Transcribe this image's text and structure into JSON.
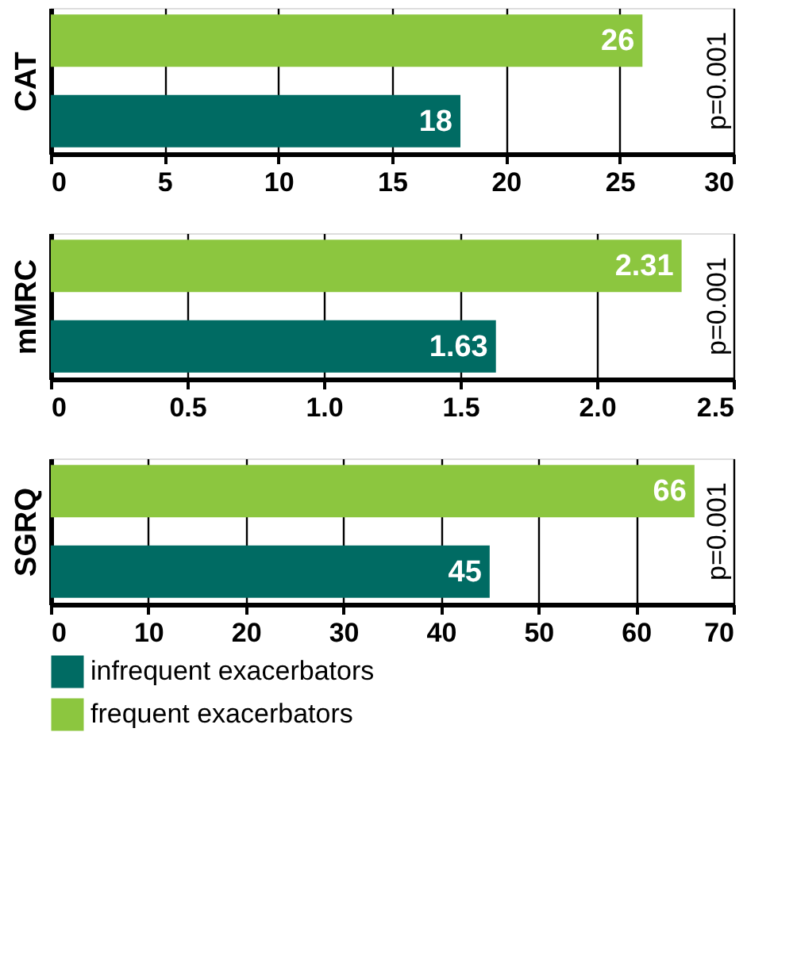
{
  "chart_data": [
    {
      "type": "bar",
      "orientation": "horizontal",
      "ylabel": "CAT",
      "categories": [
        null
      ],
      "series": [
        {
          "color": "#006b63",
          "values": [
            18
          ]
        },
        {
          "color": "#8cc63f",
          "values": [
            26
          ]
        }
      ],
      "xlim": [
        0,
        30
      ],
      "xticks": [
        0,
        5,
        10,
        15,
        20,
        25,
        30
      ],
      "grid": "x",
      "data_labels": true,
      "legend": false,
      "annotations": [
        "p=0.001"
      ]
    },
    {
      "type": "bar",
      "orientation": "horizontal",
      "ylabel": "mMRC",
      "categories": [
        null
      ],
      "series": [
        {
          "color": "#006b63",
          "values": [
            1.63
          ]
        },
        {
          "color": "#8cc63f",
          "values": [
            2.31
          ]
        }
      ],
      "xlim": [
        0,
        2.5
      ],
      "xticks": [
        0,
        0.5,
        {
          "value": 1,
          "label": "1.0"
        },
        1.5,
        {
          "value": 2,
          "label": "2.0"
        },
        2.5
      ],
      "grid": "x",
      "data_labels": true,
      "legend": false,
      "annotations": [
        "p=0.001"
      ]
    },
    {
      "type": "bar",
      "orientation": "horizontal",
      "ylabel": "SGRQ",
      "categories": [
        null
      ],
      "series": [
        {
          "name": "infrequent exacerbators",
          "color": "#006b63",
          "values": [
            45
          ]
        },
        {
          "name": "frequent exacerbators",
          "color": "#8cc63f",
          "values": [
            66
          ]
        }
      ],
      "xlim": [
        0,
        70
      ],
      "xticks": [
        0,
        10,
        20,
        30,
        40,
        50,
        60,
        70
      ],
      "grid": "x",
      "data_labels": true,
      "legend": "bottom left",
      "annotations": [
        "p=0.001"
      ]
    }
  ]
}
